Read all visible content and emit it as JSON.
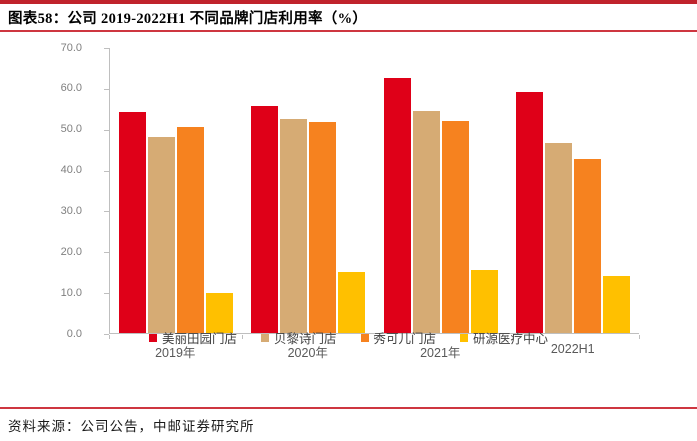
{
  "header": {
    "title": "图表58：公司 2019-2022H1 不同品牌门店利用率（%）"
  },
  "footer": {
    "source": "资料来源：公司公告，中邮证券研究所"
  },
  "chart_data": {
    "type": "bar",
    "title": "公司 2019-2022H1 不同品牌门店利用率（%）",
    "categories": [
      "2019年",
      "2020年",
      "2021年",
      "2022H1"
    ],
    "series": [
      {
        "name": "美丽田园门店",
        "color": "#df0018",
        "values": [
          54.0,
          55.6,
          62.4,
          59.0
        ]
      },
      {
        "name": "贝黎诗门店",
        "color": "#d6ab74",
        "values": [
          48.0,
          52.4,
          54.3,
          46.6
        ]
      },
      {
        "name": "秀可儿门店",
        "color": "#f6821f",
        "values": [
          50.4,
          51.6,
          51.9,
          42.5
        ]
      },
      {
        "name": "研源医疗中心",
        "color": "#ffc000",
        "values": [
          9.8,
          14.9,
          15.4,
          13.9
        ]
      }
    ],
    "xlabel": "",
    "ylabel": "",
    "ylim": [
      0,
      70
    ],
    "ytick_step": 10,
    "ytick_labels": [
      "0.0",
      "10.0",
      "20.0",
      "30.0",
      "40.0",
      "50.0",
      "60.0",
      "70.0"
    ],
    "grid": false,
    "legend_position": "bottom",
    "accent_colors": {
      "rule_red_thick": "#c0232c",
      "rule_red_thin": "#ce3640",
      "axis_gray": "#bfbfbf",
      "ytick_text": "#7f7f7f",
      "xtick_text": "#595959",
      "legend_text": "#404040"
    }
  }
}
